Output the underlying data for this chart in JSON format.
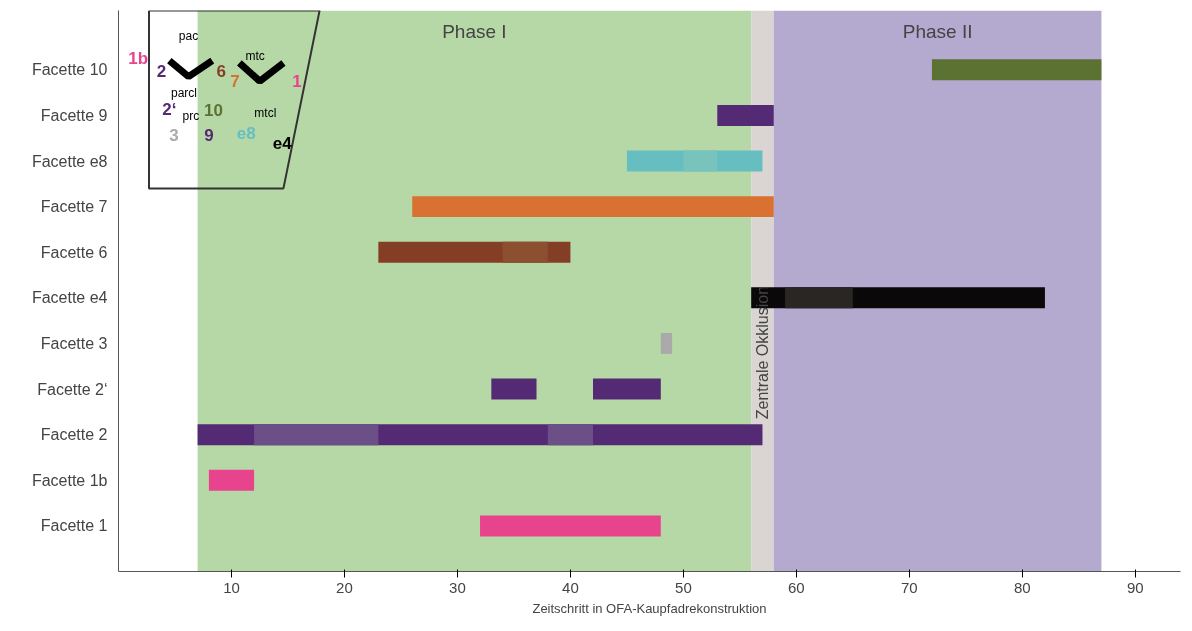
{
  "chart_data": {
    "type": "bar",
    "orientation": "horizontal",
    "xlabel": "Zeitschritt in OFA-Kaupfadrekonstruktion",
    "categories": [
      "Facette 10",
      "Facette 9",
      "Facette e8",
      "Facette 7",
      "Facette 6",
      "Facette e4",
      "Facette 3",
      "Facette 2‘",
      "Facette 2",
      "Facette 1b",
      "Facette 1"
    ],
    "series": [
      {
        "base": [
          72,
          53,
          45,
          26,
          23,
          56,
          48,
          33,
          7,
          8,
          32
        ],
        "values": [
          15,
          5,
          12,
          32,
          17,
          26,
          1,
          4,
          50,
          4,
          16
        ],
        "colors": [
          "#5b7232",
          "#542a74",
          "#66bec0",
          "#d97132",
          "#853e26",
          "#0a0808",
          "#aaaaaa",
          "#542a74",
          "#542a74",
          "#e8448e",
          "#e8448e"
        ]
      },
      {
        "base": [
          null,
          null,
          null,
          null,
          null,
          null,
          null,
          42,
          null,
          null,
          null
        ],
        "values": [
          null,
          null,
          null,
          null,
          null,
          null,
          null,
          6,
          null,
          null,
          null
        ],
        "color": "#542a74"
      },
      {
        "base": [
          null,
          null,
          50,
          null,
          34,
          59,
          null,
          null,
          12,
          null,
          null
        ],
        "values": [
          null,
          null,
          3,
          null,
          4,
          6,
          null,
          null,
          11,
          null,
          null
        ],
        "colors": [
          null,
          null,
          "#78c4bc",
          null,
          "#8c5030",
          "#2a2624",
          null,
          null,
          "#6c4f86",
          null,
          null
        ]
      },
      {
        "base": [
          null,
          null,
          null,
          null,
          null,
          null,
          null,
          null,
          38,
          null,
          null
        ],
        "values": [
          null,
          null,
          null,
          null,
          null,
          null,
          null,
          null,
          4,
          null,
          null
        ],
        "color": "#6c4f86"
      }
    ],
    "xlim": [
      0,
      94
    ],
    "xticks": [
      10,
      20,
      30,
      40,
      50,
      60,
      70,
      80,
      90
    ],
    "bands": [
      {
        "axis": "x",
        "from": 7,
        "to": 56,
        "label": "Phase I",
        "color": "#b6d8a6"
      },
      {
        "axis": "x",
        "from": 56,
        "to": 58,
        "label": "Zentrale Okklusion",
        "color": "#dad5d3"
      },
      {
        "axis": "x",
        "from": 58,
        "to": 87,
        "label": "Phase II",
        "color": "#b4a9cf"
      }
    ],
    "annotations": [
      "1b",
      "pac",
      "2",
      "6",
      "mtc",
      "7",
      "1",
      "2‘",
      "parcl",
      "10",
      "prc",
      "3",
      "9",
      "mtcl",
      "e8",
      "e4"
    ],
    "tick_labels": true
  }
}
